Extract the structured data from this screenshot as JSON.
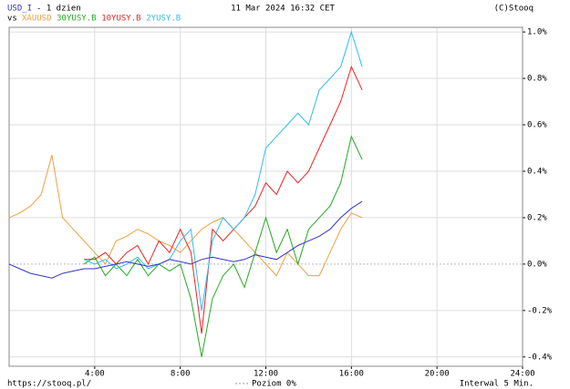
{
  "chart_data": {
    "type": "line",
    "period": "- 1 dzien",
    "date": "11 Mar 2024 16:32 CET",
    "copyright": "(C)Stooq",
    "vs_label": "vs",
    "source": "https://stooq.pl/",
    "zero_label": "Poziom 0%",
    "interval": "Interwal 5 Min.",
    "grid": true,
    "x": [
      0,
      0.5,
      1,
      1.5,
      2,
      2.5,
      3,
      3.5,
      4,
      4.5,
      5,
      5.5,
      6,
      6.5,
      7,
      7.5,
      8,
      8.5,
      9,
      9.5,
      10,
      10.5,
      11,
      11.5,
      12,
      12.5,
      13,
      13.5,
      14,
      14.5,
      15,
      15.5,
      16,
      16.5
    ],
    "xlim": [
      0,
      24
    ],
    "xticks": [
      {
        "value": 4,
        "label": "4:00"
      },
      {
        "value": 8,
        "label": "8:00"
      },
      {
        "value": 12,
        "label": "12:00"
      },
      {
        "value": 16,
        "label": "16:00"
      },
      {
        "value": 20,
        "label": "20:00"
      },
      {
        "value": 24,
        "label": "24:00"
      }
    ],
    "ylim": [
      -0.44,
      1.02
    ],
    "yticks": [
      {
        "value": -0.4,
        "label": "-0.4%"
      },
      {
        "value": -0.2,
        "label": "-0.2%"
      },
      {
        "value": 0,
        "label": "0.0%"
      },
      {
        "value": 0.2,
        "label": "0.2%"
      },
      {
        "value": 0.4,
        "label": "0.4%"
      },
      {
        "value": 0.6,
        "label": "0.6%"
      },
      {
        "value": 0.8,
        "label": "0.8%"
      },
      {
        "value": 1.0,
        "label": "1.0%"
      }
    ],
    "series": [
      {
        "name": "USD_I",
        "color": "#3333cc",
        "values": [
          0,
          -0.02,
          -0.04,
          -0.05,
          -0.06,
          -0.04,
          -0.03,
          -0.02,
          -0.02,
          -0.01,
          0,
          0.01,
          0,
          -0.01,
          0,
          0.02,
          0.01,
          0,
          0.02,
          0.03,
          0.02,
          0.01,
          0.02,
          0.04,
          0.03,
          0.02,
          0.05,
          0.08,
          0.1,
          0.12,
          0.15,
          0.2,
          0.24,
          0.27
        ]
      },
      {
        "name": "XAUUSD",
        "color": "#f0a040",
        "values": [
          0.2,
          0.22,
          0.25,
          0.3,
          0.47,
          0.2,
          0.15,
          0.1,
          0.05,
          0,
          0.1,
          0.12,
          0.15,
          0.13,
          0.1,
          0.08,
          0.05,
          0.1,
          0.15,
          0.18,
          0.2,
          0.15,
          0.1,
          0.05,
          0,
          -0.05,
          0.05,
          0,
          -0.05,
          -0.05,
          0.05,
          0.15,
          0.22,
          0.2
        ]
      },
      {
        "name": "30YUSY.B",
        "color": "#22aa22",
        "values": [
          null,
          null,
          null,
          null,
          null,
          null,
          null,
          0,
          0.03,
          -0.05,
          0,
          -0.05,
          0.02,
          -0.05,
          0,
          -0.03,
          0,
          -0.15,
          -0.4,
          -0.15,
          -0.05,
          0,
          -0.1,
          0.05,
          0.2,
          0.05,
          0.15,
          0,
          0.15,
          0.2,
          0.25,
          0.35,
          0.55,
          0.45
        ]
      },
      {
        "name": "10YUSY.B",
        "color": "#ee2222",
        "values": [
          null,
          null,
          null,
          null,
          null,
          null,
          null,
          0.02,
          0.02,
          0.05,
          0,
          0.05,
          0.08,
          0,
          0.1,
          0.05,
          0.15,
          0.05,
          -0.3,
          0.15,
          0.1,
          0.15,
          0.2,
          0.25,
          0.35,
          0.3,
          0.4,
          0.35,
          0.4,
          0.5,
          0.6,
          0.7,
          0.85,
          0.75
        ]
      },
      {
        "name": "2YUSY.B",
        "color": "#33bbee",
        "values": [
          null,
          null,
          null,
          null,
          null,
          null,
          null,
          0.02,
          0,
          0.02,
          -0.02,
          0,
          0.03,
          -0.02,
          0,
          0.02,
          0.1,
          0.15,
          -0.2,
          0.1,
          0.2,
          0.15,
          0.2,
          0.3,
          0.5,
          0.55,
          0.6,
          0.65,
          0.6,
          0.75,
          0.8,
          0.85,
          1.0,
          0.85
        ]
      }
    ]
  }
}
